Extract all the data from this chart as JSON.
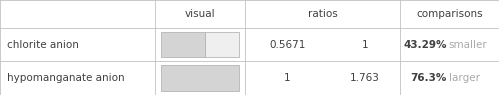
{
  "rows": [
    {
      "label": "chlorite anion",
      "ratio1": "0.5671",
      "ratio2": "1",
      "comparison_pct": "43.29%",
      "comparison_word": "smaller",
      "bar_filled": 0.5671,
      "bar_total": 1.0
    },
    {
      "label": "hypomanganate anion",
      "ratio1": "1",
      "ratio2": "1.763",
      "comparison_pct": "76.3%",
      "comparison_word": "larger",
      "bar_filled": 1.0,
      "bar_total": 1.0
    }
  ],
  "col_labels": [
    "",
    "visual",
    "ratios",
    "",
    "comparisons"
  ],
  "bar_fill_color": "#d4d4d4",
  "bar_empty_color": "#efefef",
  "bar_border_color": "#aaaaaa",
  "line_color": "#c0c0c0",
  "text_dark": "#404040",
  "text_gray": "#aaaaaa",
  "bg_color": "#ffffff",
  "font_size": 7.5,
  "header_font_size": 7.5,
  "figw": 4.99,
  "figh": 0.95,
  "dpi": 100
}
